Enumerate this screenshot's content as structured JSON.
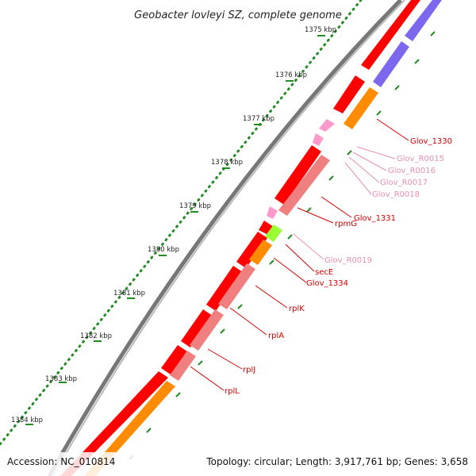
{
  "title": "Geobacter lovleyi SZ, complete genome",
  "footer": {
    "accession": "Accession: NC_010814",
    "topology": "Topology: circular; Length: 3,917,761 bp; Genes: 3,658"
  },
  "scale_ticks": [
    "1375 kbp",
    "1376 kbp",
    "1377 kbp",
    "1378 kbp",
    "1379 kbp",
    "1380 kbp",
    "1381 kbp",
    "1382 kbp",
    "1383 kbp",
    "1384 kbp"
  ],
  "gene_labels": [
    {
      "text": "Glov_1330",
      "color": "#d40000"
    },
    {
      "text": "Glov_R0015",
      "color": "#e98fb5"
    },
    {
      "text": "Glov_R0016",
      "color": "#e98fb5"
    },
    {
      "text": "Glov_R0017",
      "color": "#e98fb5"
    },
    {
      "text": "Glov_R0018",
      "color": "#e98fb5"
    },
    {
      "text": "Glov_1331",
      "color": "#d40000"
    },
    {
      "text": "rpmG",
      "color": "#d40000"
    },
    {
      "text": "Glov_R0019",
      "color": "#e98fb5"
    },
    {
      "text": "secE",
      "color": "#d40000"
    },
    {
      "text": "Glov_1334",
      "color": "#d40000"
    },
    {
      "text": "rplK",
      "color": "#d40000"
    },
    {
      "text": "rplA",
      "color": "#d40000"
    },
    {
      "text": "rplJ",
      "color": "#d40000"
    },
    {
      "text": "rplL",
      "color": "#d40000"
    }
  ],
  "colors": {
    "backbone": "#8c8c8c",
    "cds": "#ff0000",
    "cds_pink": "#f08080",
    "trna": "#ff99cc",
    "orange": "#ff8c00",
    "blue": "#7b68ee",
    "green": "#99ff33",
    "gc_dots": "#228b22"
  }
}
